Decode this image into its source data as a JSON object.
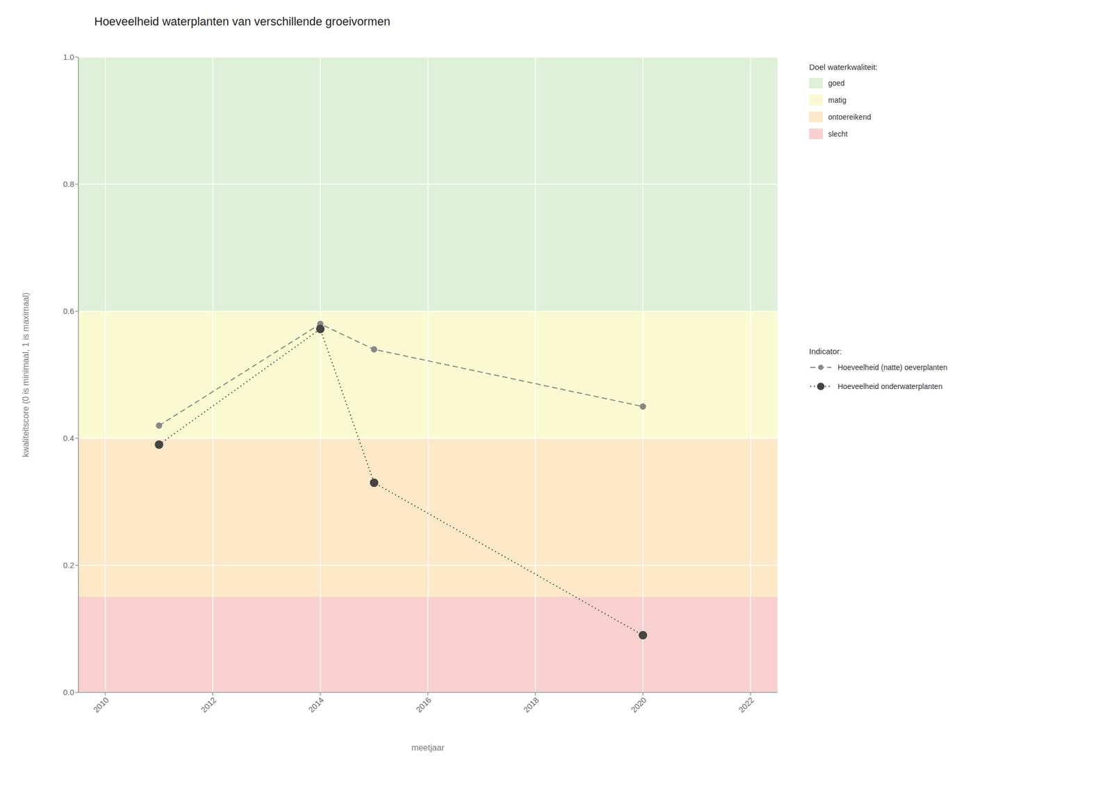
{
  "chart_data": {
    "type": "line",
    "title": "Hoeveelheid waterplanten van verschillende groeivormen",
    "xlabel": "meetjaar",
    "ylabel": "kwaliteitscore (0 is minimaal, 1 is maximaal)",
    "xlim": [
      2009.5,
      2022.5
    ],
    "ylim": [
      0.0,
      1.0
    ],
    "xticks": [
      2010,
      2012,
      2014,
      2016,
      2018,
      2020,
      2022
    ],
    "yticks": [
      {
        "value": 0.0,
        "label": "0.0"
      },
      {
        "value": 0.2,
        "label": "0.2"
      },
      {
        "value": 0.4,
        "label": "0.4"
      },
      {
        "value": 0.6,
        "label": "0.6"
      },
      {
        "value": 0.8,
        "label": "0.8"
      },
      {
        "value": 1.0,
        "label": "1.0"
      }
    ],
    "grid": true,
    "legend": "right",
    "bands": [
      {
        "name": "goed",
        "from": 0.6,
        "to": 1.0,
        "color": "#dff0d8"
      },
      {
        "name": "matig",
        "from": 0.4,
        "to": 0.6,
        "color": "#fafad2"
      },
      {
        "name": "ontoereikend",
        "from": 0.15,
        "to": 0.4,
        "color": "#fde8c8"
      },
      {
        "name": "slecht",
        "from": 0.0,
        "to": 0.15,
        "color": "#f9d0d0"
      }
    ],
    "band_legend_title": "Doel waterkwaliteit:",
    "series_legend_title": "Indicator:",
    "series": [
      {
        "name": "Hoeveelheid (natte) oeverplanten",
        "color": "#888888",
        "line_style": "dashed",
        "marker": "circle",
        "x": [
          2011,
          2014,
          2015,
          2020
        ],
        "values": [
          0.42,
          0.58,
          0.54,
          0.45
        ]
      },
      {
        "name": "Hoeveelheid onderwaterplanten",
        "color": "#444444",
        "line_style": "dotted",
        "marker": "circle",
        "x": [
          2011,
          2014,
          2015,
          2020
        ],
        "values": [
          0.39,
          0.572,
          0.33,
          0.09
        ]
      }
    ]
  }
}
